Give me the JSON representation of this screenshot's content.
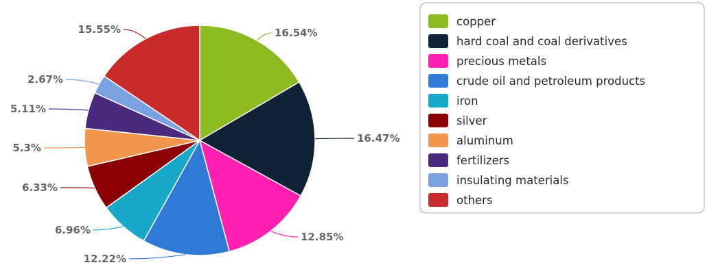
{
  "chart_data": {
    "type": "pie",
    "categories": [
      "copper",
      "hard coal and coal derivatives",
      "precious metals",
      "crude oil and petroleum products",
      "iron",
      "silver",
      "aluminum",
      "fertilizers",
      "insulating materials",
      "others"
    ],
    "values": [
      16.54,
      16.47,
      12.85,
      12.22,
      6.96,
      6.33,
      5.3,
      5.11,
      2.67,
      15.55
    ],
    "labels": [
      "16.54%",
      "16.47%",
      "12.85%",
      "12.22%",
      "6.96%",
      "6.33%",
      "5.3%",
      "5.11%",
      "2.67%",
      "15.55%"
    ],
    "colors": [
      "#8cbb21",
      "#0f2236",
      "#ff1fb0",
      "#2e7ad6",
      "#18a9c9",
      "#8b0000",
      "#f0964d",
      "#4a2a7c",
      "#7aa2e0",
      "#c92a2a"
    ],
    "legend_position": "right",
    "title": ""
  }
}
